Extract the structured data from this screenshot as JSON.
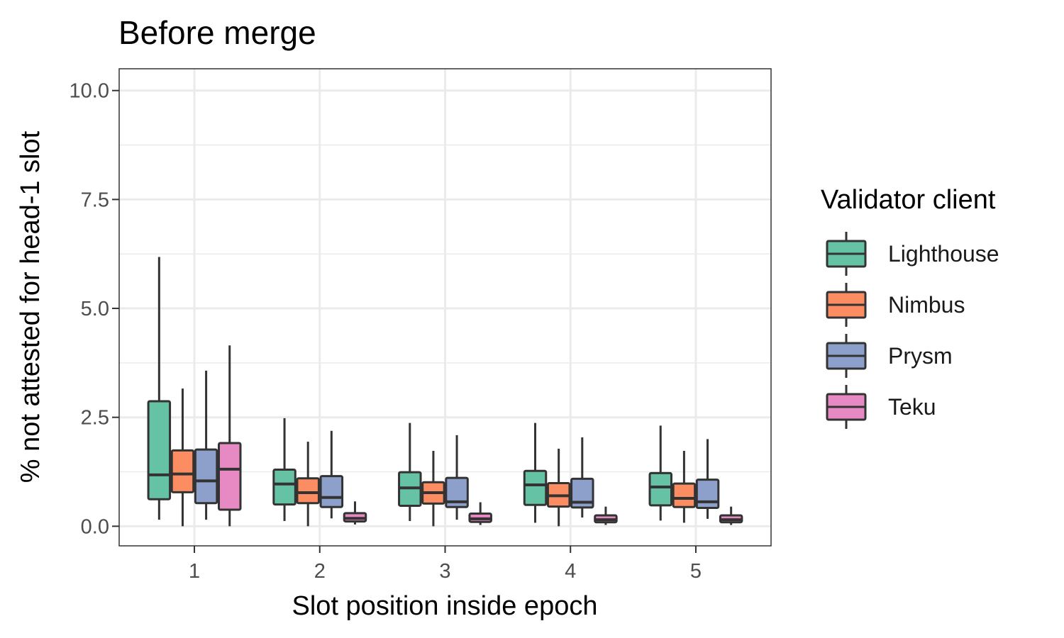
{
  "chart_data": {
    "type": "boxplot",
    "title": "Before merge",
    "xlabel": "Slot position inside epoch",
    "ylabel": "% not attested for head-1 slot",
    "categories": [
      "1",
      "2",
      "3",
      "4",
      "5"
    ],
    "ylim": [
      -0.45,
      10.5
    ],
    "y_ticks": [
      0.0,
      2.5,
      5.0,
      7.5,
      10.0
    ],
    "y_tick_labels": [
      "0.0",
      "2.5",
      "5.0",
      "7.5",
      "10.0"
    ],
    "grid": true,
    "legend": {
      "title": "Validator client",
      "position": "right"
    },
    "series": [
      {
        "name": "Lighthouse",
        "color": "#66c2a5",
        "boxes": [
          {
            "category": "1",
            "min": 0.15,
            "q1": 0.62,
            "median": 1.18,
            "q3": 2.87,
            "max": 6.18
          },
          {
            "category": "2",
            "min": 0.12,
            "q1": 0.5,
            "median": 0.97,
            "q3": 1.3,
            "max": 2.48
          },
          {
            "category": "3",
            "min": 0.12,
            "q1": 0.47,
            "median": 0.88,
            "q3": 1.24,
            "max": 2.37
          },
          {
            "category": "4",
            "min": 0.08,
            "q1": 0.49,
            "median": 0.95,
            "q3": 1.27,
            "max": 2.37
          },
          {
            "category": "5",
            "min": 0.13,
            "q1": 0.48,
            "median": 0.9,
            "q3": 1.22,
            "max": 2.31
          }
        ]
      },
      {
        "name": "Nimbus",
        "color": "#fc8d62",
        "boxes": [
          {
            "category": "1",
            "min": 0.0,
            "q1": 0.78,
            "median": 1.2,
            "q3": 1.74,
            "max": 3.16
          },
          {
            "category": "2",
            "min": 0.0,
            "q1": 0.53,
            "median": 0.77,
            "q3": 1.1,
            "max": 1.94
          },
          {
            "category": "3",
            "min": 0.0,
            "q1": 0.52,
            "median": 0.77,
            "q3": 1.01,
            "max": 1.73
          },
          {
            "category": "4",
            "min": 0.0,
            "q1": 0.45,
            "median": 0.7,
            "q3": 0.99,
            "max": 1.78
          },
          {
            "category": "5",
            "min": 0.08,
            "q1": 0.44,
            "median": 0.64,
            "q3": 0.98,
            "max": 1.73
          }
        ]
      },
      {
        "name": "Prysm",
        "color": "#8da0cb",
        "boxes": [
          {
            "category": "1",
            "min": 0.15,
            "q1": 0.53,
            "median": 1.04,
            "q3": 1.76,
            "max": 3.57
          },
          {
            "category": "2",
            "min": 0.18,
            "q1": 0.44,
            "median": 0.66,
            "q3": 1.15,
            "max": 2.19
          },
          {
            "category": "3",
            "min": 0.15,
            "q1": 0.44,
            "median": 0.56,
            "q3": 1.11,
            "max": 2.09
          },
          {
            "category": "4",
            "min": 0.2,
            "q1": 0.43,
            "median": 0.55,
            "q3": 1.09,
            "max": 2.04
          },
          {
            "category": "5",
            "min": 0.17,
            "q1": 0.42,
            "median": 0.56,
            "q3": 1.07,
            "max": 2.0
          }
        ]
      },
      {
        "name": "Teku",
        "color": "#e78ac3",
        "boxes": [
          {
            "category": "1",
            "min": 0.0,
            "q1": 0.38,
            "median": 1.31,
            "q3": 1.91,
            "max": 4.15
          },
          {
            "category": "2",
            "min": 0.04,
            "q1": 0.11,
            "median": 0.18,
            "q3": 0.3,
            "max": 0.57
          },
          {
            "category": "3",
            "min": 0.03,
            "q1": 0.1,
            "median": 0.17,
            "q3": 0.29,
            "max": 0.55
          },
          {
            "category": "4",
            "min": 0.03,
            "q1": 0.09,
            "median": 0.15,
            "q3": 0.25,
            "max": 0.45
          },
          {
            "category": "5",
            "min": 0.03,
            "q1": 0.09,
            "median": 0.15,
            "q3": 0.25,
            "max": 0.45
          }
        ]
      }
    ]
  }
}
